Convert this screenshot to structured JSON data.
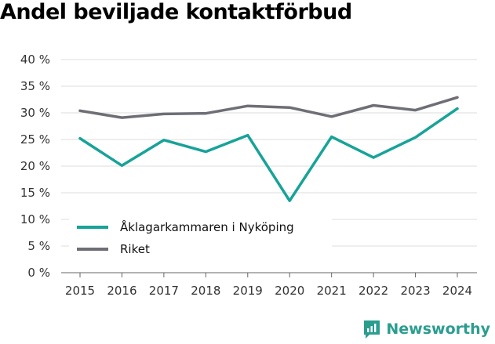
{
  "title": "Andel beviljade kontaktförbud",
  "brand": {
    "name": "Newsworthy",
    "icon": "newsworthy-logo-icon",
    "color": "#2a9d8f"
  },
  "chart_data": {
    "type": "line",
    "title": "Andel beviljade kontaktförbud",
    "xlabel": "",
    "ylabel": "",
    "x": [
      "2015",
      "2016",
      "2017",
      "2018",
      "2019",
      "2020",
      "2021",
      "2022",
      "2023",
      "2024"
    ],
    "ylim": [
      0,
      40
    ],
    "yticks": [
      0,
      5,
      10,
      15,
      20,
      25,
      30,
      35,
      40
    ],
    "ytick_labels": [
      "0 %",
      "5 %",
      "10 %",
      "15 %",
      "20 %",
      "25 %",
      "30 %",
      "35 %",
      "40 %"
    ],
    "grid": true,
    "legend_position": "bottom-left",
    "series": [
      {
        "name": "Åklagarkammaren i Nyköping",
        "color": "#17a398",
        "values": [
          25.2,
          20.1,
          24.9,
          22.7,
          25.8,
          13.5,
          25.5,
          21.6,
          25.4,
          30.8
        ]
      },
      {
        "name": "Riket",
        "color": "#6e6e76",
        "values": [
          30.4,
          29.1,
          29.8,
          29.9,
          31.3,
          31.0,
          29.3,
          31.4,
          30.5,
          32.9
        ]
      }
    ]
  }
}
